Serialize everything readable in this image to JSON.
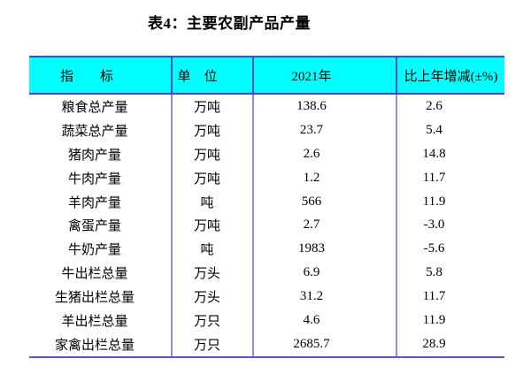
{
  "title": "表4：主要农副产品产量",
  "colors": {
    "header_bg": "#00ffff",
    "header_border": "#4343e6",
    "header_divider": "#1b49d8",
    "body_divider": "#8a8aec",
    "bottom_rule": "#5353e2",
    "text": "#000000"
  },
  "table": {
    "headers": [
      "指　　标",
      "单　位",
      "2021年",
      "比上年增减(±%)"
    ],
    "rows": [
      {
        "indicator": "粮食总产量",
        "unit": "万吨",
        "value": "138.6",
        "change": "2.6"
      },
      {
        "indicator": "蔬菜总产量",
        "unit": "万吨",
        "value": "23.7",
        "change": "5.4"
      },
      {
        "indicator": "猪肉产量",
        "unit": "万吨",
        "value": "2.6",
        "change": "14.8"
      },
      {
        "indicator": "牛肉产量",
        "unit": "万吨",
        "value": "1.2",
        "change": "11.7"
      },
      {
        "indicator": "羊肉产量",
        "unit": "吨",
        "value": "566",
        "change": "11.9"
      },
      {
        "indicator": "禽蛋产量",
        "unit": "万吨",
        "value": "2.7",
        "change": "-3.0"
      },
      {
        "indicator": "牛奶产量",
        "unit": "吨",
        "value": "1983",
        "change": "-5.6"
      },
      {
        "indicator": "牛出栏总量",
        "unit": "万头",
        "value": "6.9",
        "change": "5.8"
      },
      {
        "indicator": "生猪出栏总量",
        "unit": "万头",
        "value": "31.2",
        "change": "11.7"
      },
      {
        "indicator": "羊出栏总量",
        "unit": "万只",
        "value": "4.6",
        "change": "11.9"
      },
      {
        "indicator": "家禽出栏总量",
        "unit": "万只",
        "value": "2685.7",
        "change": "28.9"
      }
    ]
  }
}
